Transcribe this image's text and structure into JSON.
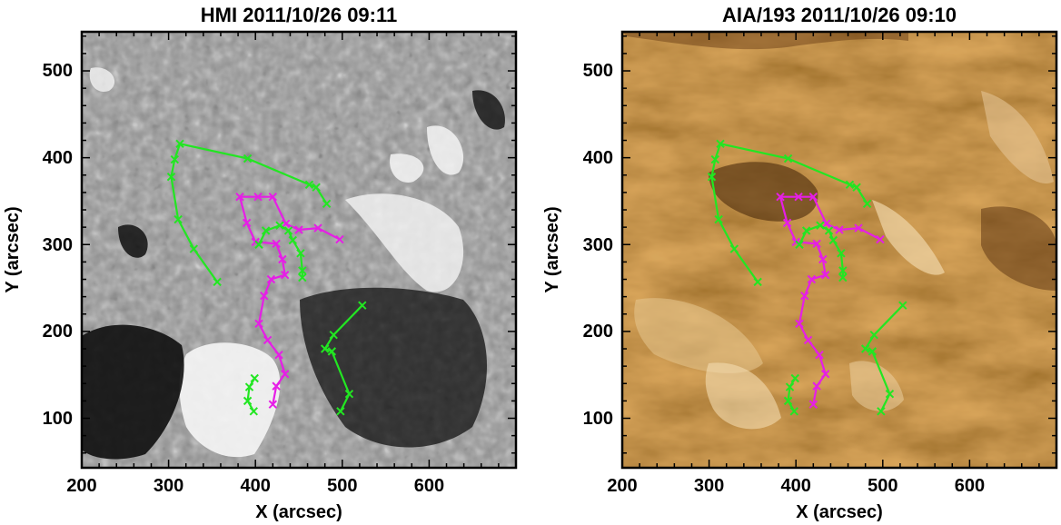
{
  "panels": [
    {
      "title": "HMI 2011/10/26 09:11",
      "xlabel": "X (arcsec)",
      "ylabel": "Y (arcsec)",
      "xticks": [
        "200",
        "300",
        "400",
        "500",
        "600"
      ],
      "yticks": [
        "100",
        "200",
        "300",
        "400",
        "500"
      ],
      "background": "magnetogram-grayscale"
    },
    {
      "title": "AIA/193 2011/10/26 09:10",
      "xlabel": "X (arcsec)",
      "ylabel": "Y (arcsec)",
      "xticks": [
        "200",
        "300",
        "400",
        "500",
        "600"
      ],
      "yticks": [
        "100",
        "200",
        "300",
        "400",
        "500"
      ],
      "background": "euv-193-brown"
    }
  ],
  "axes": {
    "xlim": [
      200,
      700
    ],
    "ylim": [
      43,
      545
    ]
  },
  "colors": {
    "green_track": "#22e622",
    "magenta_track": "#e61ee6",
    "hmi_bg": "#8a8a8a",
    "aia_bg": "#a8712e"
  },
  "tracks": [
    {
      "color": "green",
      "points": [
        [
          356,
          257
        ],
        [
          329,
          295
        ],
        [
          311,
          329
        ],
        [
          303,
          378
        ],
        [
          307,
          398
        ],
        [
          313,
          416
        ],
        [
          391,
          399
        ],
        [
          462,
          369
        ],
        [
          470,
          366
        ],
        [
          482,
          347
        ]
      ]
    },
    {
      "color": "magenta",
      "points": [
        [
          497,
          306
        ],
        [
          472,
          319
        ],
        [
          450,
          317
        ],
        [
          435,
          324
        ],
        [
          420,
          355
        ],
        [
          403,
          355
        ],
        [
          382,
          355
        ],
        [
          390,
          325
        ],
        [
          400,
          303
        ],
        [
          424,
          301
        ],
        [
          431,
          283
        ],
        [
          434,
          265
        ],
        [
          418,
          260
        ],
        [
          410,
          241
        ],
        [
          404,
          209
        ],
        [
          414,
          190
        ],
        [
          427,
          173
        ],
        [
          434,
          151
        ],
        [
          424,
          137
        ],
        [
          420,
          116
        ]
      ]
    },
    {
      "color": "green",
      "points": [
        [
          454,
          262
        ],
        [
          454,
          270
        ],
        [
          452,
          290
        ],
        [
          443,
          305
        ],
        [
          438,
          316
        ],
        [
          428,
          322
        ],
        [
          412,
          316
        ],
        [
          404,
          300
        ]
      ]
    },
    {
      "color": "green",
      "points": [
        [
          523,
          230
        ],
        [
          490,
          196
        ],
        [
          480,
          180
        ],
        [
          488,
          177
        ],
        [
          508,
          128
        ],
        [
          498,
          108
        ]
      ]
    },
    {
      "color": "green",
      "points": [
        [
          399,
          146
        ],
        [
          393,
          136
        ],
        [
          391,
          120
        ],
        [
          398,
          108
        ]
      ]
    }
  ]
}
